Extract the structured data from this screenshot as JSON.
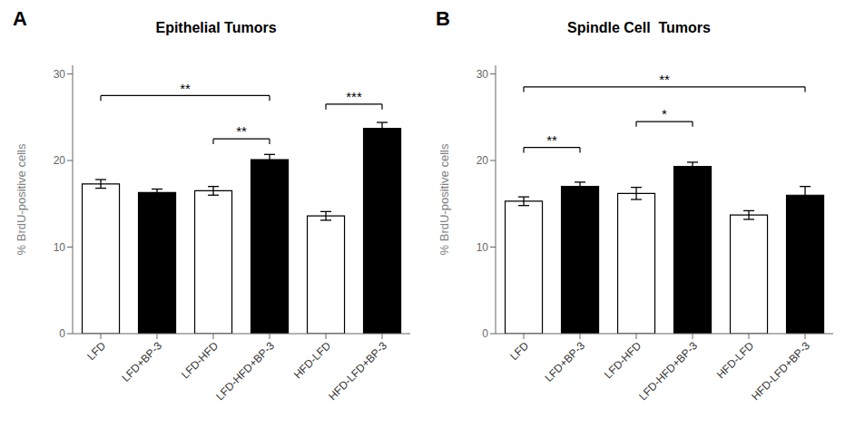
{
  "chart_data": [
    {
      "type": "bar",
      "title": "Epithelial Tumors",
      "panel_label": "A",
      "categories": [
        "LFD",
        "LFD+BP-3",
        "LFD-HFD",
        "LFD-HFD+BP-3",
        "HFD-LFD",
        "HFD-LFD+BP-3"
      ],
      "values": [
        17.3,
        16.3,
        16.5,
        20.1,
        13.6,
        23.7
      ],
      "errors": [
        0.5,
        0.4,
        0.5,
        0.6,
        0.5,
        0.7
      ],
      "colors": [
        "white",
        "black",
        "white",
        "black",
        "white",
        "black"
      ],
      "annotations": [
        {
          "x1": "LFD",
          "x2": "LFD-HFD+BP-3",
          "y": 27.5,
          "label": "**",
          "label_y": 27.8
        },
        {
          "x1": "LFD-HFD",
          "x2": "LFD-HFD+BP-3",
          "y": 22.5,
          "label": "**",
          "label_y": 22.8
        },
        {
          "x1": "HFD-LFD",
          "x2": "HFD-LFD+BP-3",
          "y": 26.5,
          "label": "***",
          "label_y": 26.8
        }
      ],
      "ylim": [
        0,
        31
      ],
      "yticks": [
        0,
        10,
        20,
        30
      ],
      "ylabel": "% BrdU-positive cells"
    },
    {
      "type": "bar",
      "title": "Spindle Cell  Tumors",
      "panel_label": "B",
      "categories": [
        "LFD",
        "LFD+BP-3",
        "LFD-HFD",
        "LFD-HFD+BP-3",
        "HFD-LFD",
        "HFD-LFD+BP-3"
      ],
      "values": [
        15.3,
        17.0,
        16.2,
        19.3,
        13.7,
        16.0
      ],
      "errors": [
        0.5,
        0.5,
        0.7,
        0.5,
        0.5,
        1.0
      ],
      "colors": [
        "white",
        "black",
        "white",
        "black",
        "white",
        "black"
      ],
      "annotations": [
        {
          "x1": "LFD",
          "x2": "HFD-LFD+BP-3",
          "y": 28.5,
          "label": "**",
          "label_y": 28.8
        },
        {
          "x1": "LFD",
          "x2": "LFD+BP-3",
          "y": 21.5,
          "label": "**",
          "label_y": 21.8
        },
        {
          "x1": "LFD-HFD",
          "x2": "LFD-HFD+BP-3",
          "y": 24.5,
          "label": "*",
          "label_y": 24.8
        }
      ],
      "ylim": [
        0,
        31
      ],
      "yticks": [
        0,
        10,
        20,
        30
      ],
      "ylabel": "% BrdU-positive cells"
    }
  ]
}
